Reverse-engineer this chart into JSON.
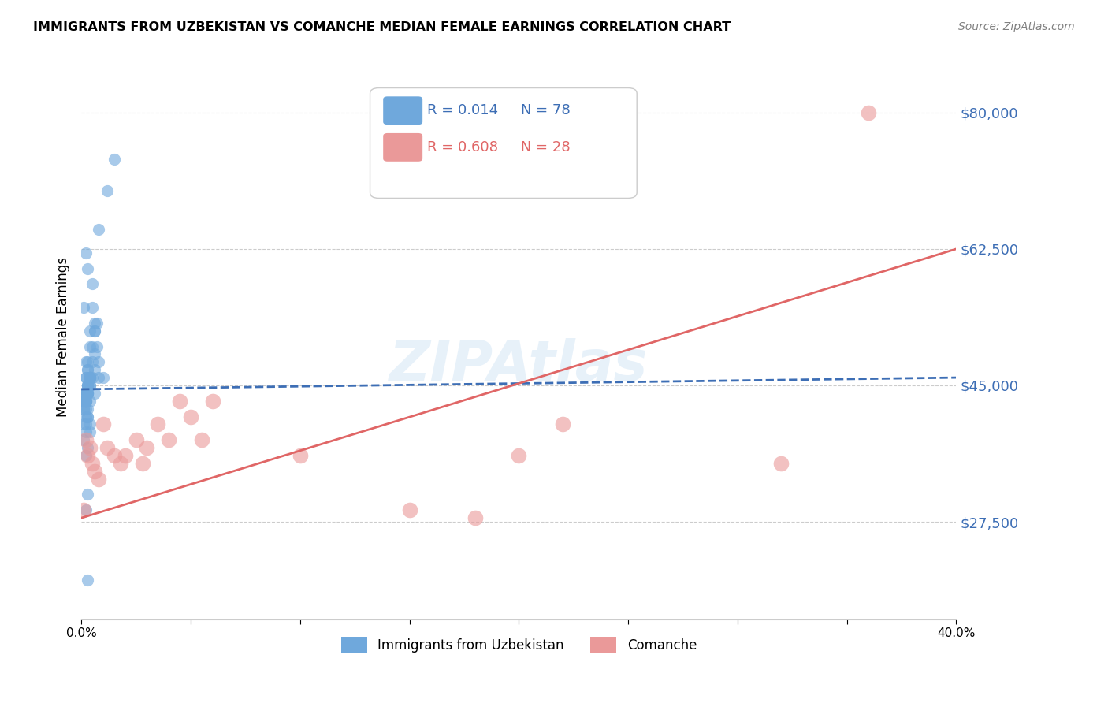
{
  "title": "IMMIGRANTS FROM UZBEKISTAN VS COMANCHE MEDIAN FEMALE EARNINGS CORRELATION CHART",
  "source": "Source: ZipAtlas.com",
  "xlabel": "",
  "ylabel": "Median Female Earnings",
  "xlim": [
    0.0,
    0.4
  ],
  "ylim": [
    15000,
    87500
  ],
  "xticks": [
    0.0,
    0.05,
    0.1,
    0.15,
    0.2,
    0.25,
    0.3,
    0.35,
    0.4
  ],
  "xtick_labels": [
    "0.0%",
    "",
    "",
    "",
    "",
    "",
    "",
    "",
    "40.0%"
  ],
  "ytick_vals": [
    27500,
    45000,
    62500,
    80000
  ],
  "ytick_labels": [
    "$27,500",
    "$45,000",
    "$62,500",
    "$80,000"
  ],
  "blue_color": "#6fa8dc",
  "pink_color": "#ea9999",
  "blue_line_color": "#3d6eb5",
  "pink_line_color": "#e06666",
  "legend_r_blue": "R = 0.014",
  "legend_n_blue": "N = 78",
  "legend_r_pink": "R = 0.608",
  "legend_n_pink": "N = 28",
  "legend_label_blue": "Immigrants from Uzbekistan",
  "legend_label_pink": "Comanche",
  "watermark": "ZIPAtlas",
  "background_color": "#ffffff",
  "blue_scatter_x": [
    0.002,
    0.005,
    0.012,
    0.008,
    0.003,
    0.001,
    0.006,
    0.004,
    0.002,
    0.007,
    0.003,
    0.002,
    0.001,
    0.004,
    0.003,
    0.002,
    0.001,
    0.003,
    0.002,
    0.001,
    0.005,
    0.004,
    0.003,
    0.002,
    0.006,
    0.003,
    0.002,
    0.004,
    0.003,
    0.001,
    0.002,
    0.003,
    0.004,
    0.002,
    0.001,
    0.003,
    0.002,
    0.004,
    0.003,
    0.002,
    0.006,
    0.005,
    0.003,
    0.004,
    0.002,
    0.001,
    0.003,
    0.002,
    0.004,
    0.003,
    0.008,
    0.006,
    0.004,
    0.003,
    0.002,
    0.001,
    0.005,
    0.003,
    0.002,
    0.004,
    0.007,
    0.005,
    0.004,
    0.003,
    0.002,
    0.001,
    0.006,
    0.003,
    0.002,
    0.004,
    0.01,
    0.008,
    0.015,
    0.006,
    0.003,
    0.002,
    0.004,
    0.003
  ],
  "blue_scatter_y": [
    62000,
    58000,
    70000,
    65000,
    60000,
    55000,
    52000,
    50000,
    48000,
    53000,
    47000,
    46000,
    44000,
    43000,
    42000,
    41000,
    40000,
    45000,
    44000,
    43000,
    55000,
    52000,
    48000,
    46000,
    53000,
    45000,
    44000,
    46000,
    45000,
    43000,
    42000,
    41000,
    40000,
    39000,
    38000,
    37000,
    36000,
    46000,
    44000,
    43000,
    52000,
    50000,
    47000,
    46000,
    44000,
    43000,
    41000,
    40000,
    46000,
    44000,
    48000,
    47000,
    45000,
    44000,
    43000,
    42000,
    46000,
    44000,
    43000,
    45000,
    50000,
    48000,
    46000,
    45000,
    43000,
    42000,
    49000,
    44000,
    43000,
    46000,
    46000,
    46000,
    74000,
    44000,
    31000,
    29000,
    39000,
    20000
  ],
  "pink_scatter_x": [
    0.001,
    0.002,
    0.003,
    0.004,
    0.005,
    0.006,
    0.008,
    0.01,
    0.012,
    0.015,
    0.018,
    0.02,
    0.025,
    0.028,
    0.03,
    0.035,
    0.04,
    0.045,
    0.05,
    0.055,
    0.06,
    0.1,
    0.15,
    0.18,
    0.2,
    0.22,
    0.32,
    0.36
  ],
  "pink_scatter_y": [
    29000,
    38000,
    36000,
    37000,
    35000,
    34000,
    33000,
    40000,
    37000,
    36000,
    35000,
    36000,
    38000,
    35000,
    37000,
    40000,
    38000,
    43000,
    41000,
    38000,
    43000,
    36000,
    29000,
    28000,
    36000,
    40000,
    35000,
    80000
  ],
  "blue_trend_x": [
    0.0,
    0.4
  ],
  "blue_trend_y": [
    44500,
    46000
  ],
  "pink_trend_x": [
    0.0,
    0.4
  ],
  "pink_trend_y": [
    28000,
    62500
  ]
}
